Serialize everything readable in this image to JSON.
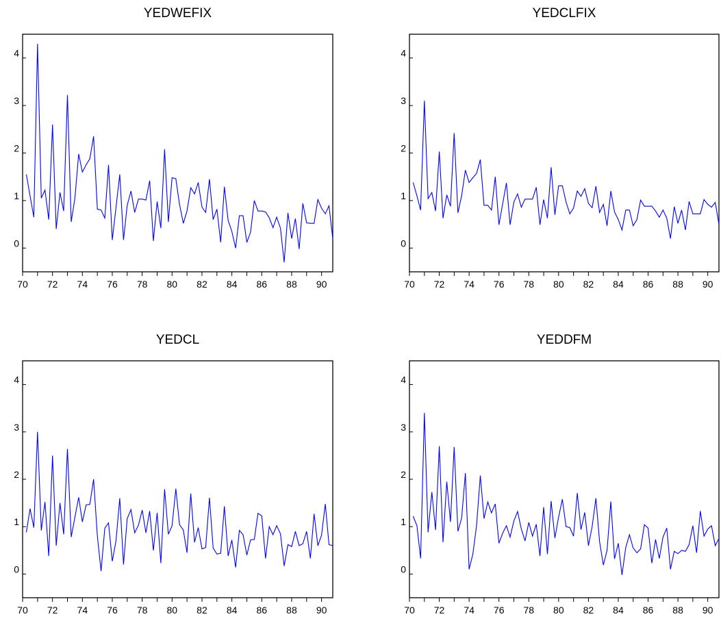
{
  "chart_data": [
    {
      "type": "line",
      "title": "YEDWEFIX",
      "xlabel": "",
      "ylabel": "",
      "xlim": [
        1970,
        1990.75
      ],
      "ylim": [
        -0.5,
        4.5
      ],
      "grid": false,
      "line_color": "#0000ff",
      "x_ticks": [
        "70",
        "72",
        "74",
        "76",
        "78",
        "80",
        "82",
        "84",
        "86",
        "88",
        "90"
      ],
      "y_ticks": [
        "0",
        "1",
        "2",
        "3",
        "4"
      ],
      "x_start": 1970.25,
      "x_step": 0.25,
      "values": [
        1.55,
        1.1,
        0.65,
        4.3,
        1.05,
        1.22,
        0.6,
        2.6,
        0.4,
        1.17,
        0.78,
        3.22,
        0.55,
        1.05,
        1.98,
        1.6,
        1.75,
        1.88,
        2.35,
        0.82,
        0.8,
        0.63,
        1.75,
        0.17,
        0.85,
        1.55,
        0.17,
        0.9,
        1.2,
        0.75,
        1.03,
        1.03,
        1.01,
        1.42,
        0.15,
        0.98,
        0.42,
        2.08,
        0.55,
        1.48,
        1.46,
        0.92,
        0.52,
        0.78,
        1.27,
        1.14,
        1.38,
        0.86,
        0.75,
        1.45,
        0.6,
        0.82,
        0.12,
        1.29,
        0.58,
        0.35,
        0.0,
        0.68,
        0.68,
        0.12,
        0.33,
        1.0,
        0.78,
        0.78,
        0.76,
        0.64,
        0.43,
        0.65,
        0.42,
        -0.3,
        0.74,
        0.2,
        0.62,
        -0.02,
        0.94,
        0.53,
        0.52,
        0.52,
        1.02,
        0.84,
        0.72,
        0.89,
        0.2
      ]
    },
    {
      "type": "line",
      "title": "YEDCLFIX",
      "xlabel": "",
      "ylabel": "",
      "xlim": [
        1970,
        1990.75
      ],
      "ylim": [
        -0.5,
        4.5
      ],
      "grid": false,
      "line_color": "#0000ff",
      "x_ticks": [
        "70",
        "72",
        "74",
        "76",
        "78",
        "80",
        "82",
        "84",
        "86",
        "88",
        "90"
      ],
      "y_ticks": [
        "0",
        "1",
        "2",
        "3",
        "4"
      ],
      "x_start": 1970.25,
      "x_step": 0.25,
      "values": [
        1.38,
        1.1,
        0.8,
        3.1,
        1.04,
        1.17,
        0.78,
        2.03,
        0.63,
        1.12,
        0.88,
        2.42,
        0.74,
        1.1,
        1.64,
        1.38,
        1.48,
        1.57,
        1.86,
        0.9,
        0.9,
        0.8,
        1.5,
        0.49,
        0.93,
        1.37,
        0.49,
        0.97,
        1.14,
        0.86,
        1.03,
        1.03,
        1.03,
        1.28,
        0.49,
        1.02,
        0.63,
        1.7,
        0.7,
        1.31,
        1.31,
        0.97,
        0.72,
        0.84,
        1.2,
        1.09,
        1.25,
        0.94,
        0.85,
        1.3,
        0.75,
        0.92,
        0.47,
        1.2,
        0.76,
        0.6,
        0.38,
        0.8,
        0.8,
        0.47,
        0.6,
        1.01,
        0.88,
        0.88,
        0.88,
        0.78,
        0.65,
        0.8,
        0.63,
        0.2,
        0.87,
        0.52,
        0.8,
        0.38,
        0.98,
        0.72,
        0.72,
        0.72,
        1.02,
        0.92,
        0.86,
        0.96,
        0.5
      ]
    },
    {
      "type": "line",
      "title": "YEDCL",
      "xlabel": "",
      "ylabel": "",
      "xlim": [
        1970,
        1990.75
      ],
      "ylim": [
        -0.5,
        4.5
      ],
      "grid": false,
      "line_color": "#0000ff",
      "x_ticks": [
        "70",
        "72",
        "74",
        "76",
        "78",
        "80",
        "82",
        "84",
        "86",
        "88",
        "90"
      ],
      "y_ticks": [
        "0",
        "1",
        "2",
        "3",
        "4"
      ],
      "x_start": 1970.25,
      "x_step": 0.25,
      "values": [
        0.88,
        1.38,
        0.98,
        3.0,
        0.92,
        1.52,
        0.38,
        2.5,
        0.6,
        1.5,
        0.84,
        2.64,
        0.78,
        1.2,
        1.62,
        1.1,
        1.46,
        1.47,
        2.0,
        0.8,
        0.06,
        0.97,
        1.08,
        0.27,
        0.7,
        1.6,
        0.2,
        1.17,
        1.36,
        0.87,
        1.03,
        1.35,
        0.87,
        1.33,
        0.5,
        1.29,
        0.23,
        1.79,
        0.84,
        1.02,
        1.8,
        1.04,
        0.93,
        0.45,
        1.7,
        0.67,
        0.98,
        0.53,
        0.56,
        1.61,
        0.55,
        0.42,
        0.44,
        1.43,
        0.38,
        0.72,
        0.14,
        0.92,
        0.83,
        0.4,
        0.72,
        0.73,
        1.28,
        1.23,
        0.33,
        1.0,
        0.83,
        1.02,
        0.85,
        0.17,
        0.62,
        0.58,
        0.9,
        0.6,
        0.64,
        0.9,
        0.33,
        1.27,
        0.6,
        0.82,
        1.48,
        0.62,
        0.6
      ]
    },
    {
      "type": "line",
      "title": "YEDDFM",
      "xlabel": "",
      "ylabel": "",
      "xlim": [
        1970,
        1990.75
      ],
      "ylim": [
        -0.5,
        4.5
      ],
      "grid": false,
      "line_color": "#0000ff",
      "x_ticks": [
        "70",
        "72",
        "74",
        "76",
        "78",
        "80",
        "82",
        "84",
        "86",
        "88",
        "90"
      ],
      "y_ticks": [
        "0",
        "1",
        "2",
        "3",
        "4"
      ],
      "x_start": 1970.25,
      "x_step": 0.25,
      "values": [
        1.22,
        1.02,
        0.33,
        3.4,
        0.88,
        1.73,
        0.93,
        2.7,
        0.67,
        1.95,
        1.1,
        2.68,
        0.9,
        1.18,
        2.13,
        0.1,
        0.42,
        1.02,
        2.08,
        1.17,
        1.52,
        1.29,
        1.48,
        0.65,
        0.86,
        1.02,
        0.78,
        1.12,
        1.32,
        0.95,
        0.7,
        1.09,
        0.8,
        1.05,
        0.38,
        1.41,
        0.42,
        1.54,
        0.76,
        1.2,
        1.58,
        1.0,
        0.98,
        0.8,
        1.71,
        0.94,
        1.3,
        0.6,
        1.0,
        1.6,
        0.68,
        0.19,
        0.5,
        1.53,
        0.32,
        0.65,
        -0.02,
        0.56,
        0.83,
        0.55,
        0.45,
        0.53,
        1.04,
        0.97,
        0.23,
        0.73,
        0.33,
        0.78,
        0.97,
        0.1,
        0.48,
        0.43,
        0.5,
        0.48,
        0.62,
        1.02,
        0.45,
        1.33,
        0.8,
        0.95,
        1.02,
        0.6,
        0.75
      ]
    }
  ]
}
